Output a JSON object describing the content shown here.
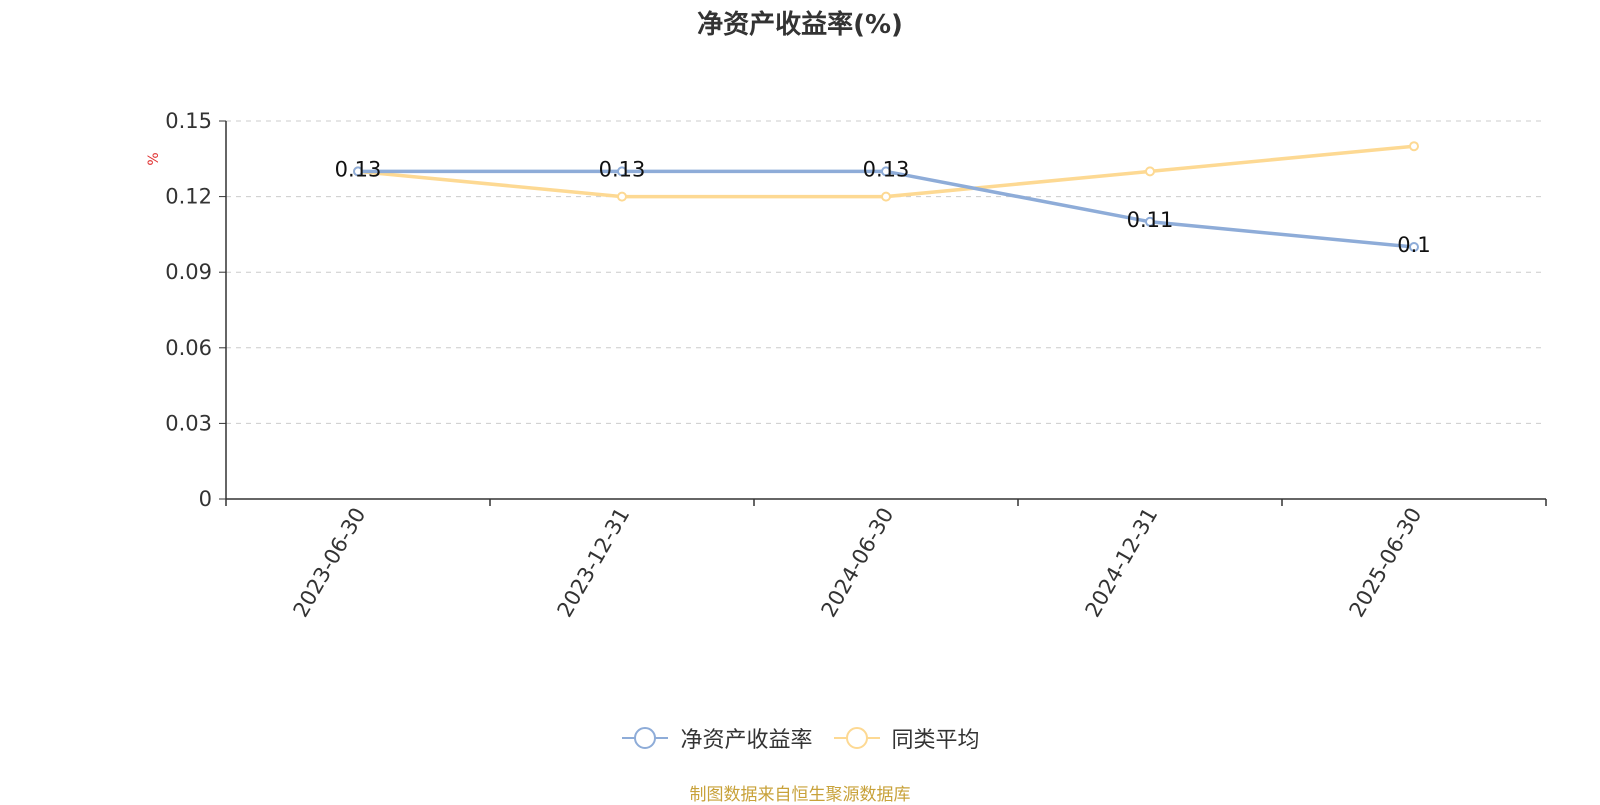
{
  "chart_data": {
    "type": "line",
    "title": "净资产收益率(%)",
    "ylabel": "%",
    "xlabel": "",
    "categories": [
      "2023-06-30",
      "2023-12-31",
      "2024-06-30",
      "2024-12-31",
      "2025-06-30"
    ],
    "ylim": [
      0,
      0.15
    ],
    "yticks": [
      "0",
      "0.03",
      "0.06",
      "0.09",
      "0.12",
      "0.15"
    ],
    "grid": true,
    "legend_position": "bottom",
    "series": [
      {
        "name": "净资产收益率",
        "values": [
          0.13,
          0.13,
          0.13,
          0.11,
          0.1
        ],
        "data_labels": [
          "0.13",
          "0.13",
          "0.13",
          "0.11",
          "0.1"
        ],
        "color": "#8eacd8"
      },
      {
        "name": "同类平均",
        "values": [
          0.13,
          0.12,
          0.12,
          0.13,
          0.14
        ],
        "color": "#fdd993"
      }
    ]
  },
  "source_note": "制图数据来自恒生聚源数据库",
  "colors": {
    "axis": "#333333",
    "grid": "#cccccc",
    "ylabel": "#e03030",
    "source": "#c8a23a"
  }
}
